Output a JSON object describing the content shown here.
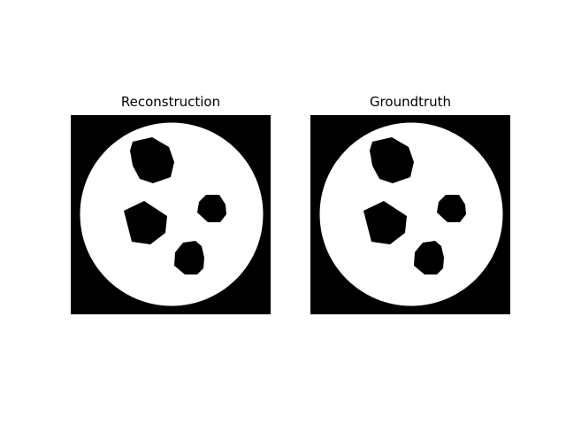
{
  "figure": {
    "panels": [
      {
        "title": "Reconstruction"
      },
      {
        "title": "Groundtruth"
      }
    ],
    "colors": {
      "background": "#000000",
      "disk": "#ffffff",
      "holes": "#000000"
    }
  }
}
